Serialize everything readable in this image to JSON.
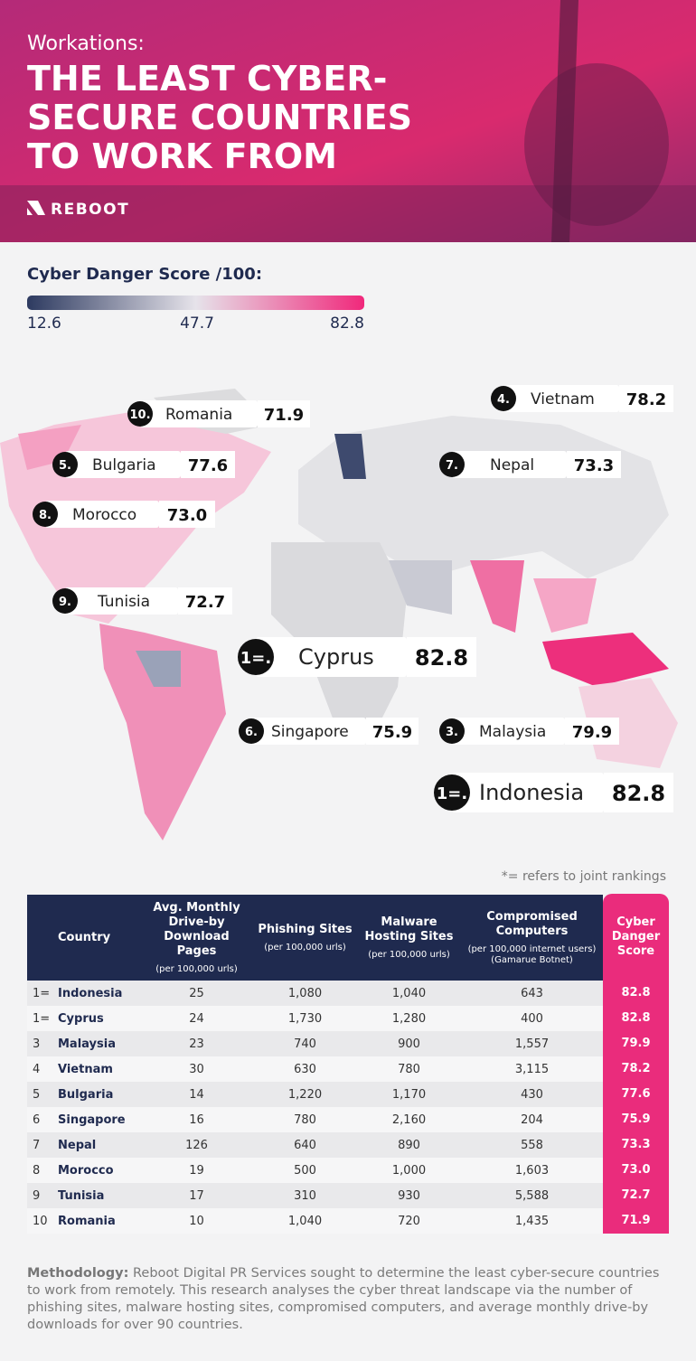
{
  "header": {
    "kicker": "Workations:",
    "title_lines": [
      "THE LEAST CYBER-",
      "SECURE COUNTRIES",
      "TO WORK FROM"
    ],
    "logo": "REBOOT"
  },
  "legend": {
    "title": "Cyber Danger Score /100:",
    "min": "12.6",
    "mid": "47.7",
    "max": "82.8"
  },
  "map_labels": [
    {
      "rank": "10.",
      "country": "Romania",
      "score": "71.9"
    },
    {
      "rank": "4.",
      "country": "Vietnam",
      "score": "78.2"
    },
    {
      "rank": "5.",
      "country": "Bulgaria",
      "score": "77.6"
    },
    {
      "rank": "7.",
      "country": "Nepal",
      "score": "73.3"
    },
    {
      "rank": "8.",
      "country": "Morocco",
      "score": "73.0"
    },
    {
      "rank": "9.",
      "country": "Tunisia",
      "score": "72.7"
    },
    {
      "rank": "1=.",
      "country": "Cyprus",
      "score": "82.8"
    },
    {
      "rank": "6.",
      "country": "Singapore",
      "score": "75.9"
    },
    {
      "rank": "3.",
      "country": "Malaysia",
      "score": "79.9"
    },
    {
      "rank": "1=.",
      "country": "Indonesia",
      "score": "82.8"
    }
  ],
  "footnote": "*= refers to joint rankings",
  "table": {
    "columns": [
      {
        "title": "Country"
      },
      {
        "title": "Avg. Monthly Drive-by Download Pages",
        "subtitle": "(per 100,000 urls)"
      },
      {
        "title": "Phishing Sites",
        "subtitle": "(per 100,000 urls)"
      },
      {
        "title": "Malware Hosting Sites",
        "subtitle": "(per 100,000 urls)"
      },
      {
        "title": "Compromised Computers",
        "subtitle": "(per 100,000 internet users) (Gamarue Botnet)"
      },
      {
        "title": "Cyber Danger Score"
      }
    ],
    "rows": [
      [
        "1=",
        "Indonesia",
        "25",
        "1,080",
        "1,040",
        "643",
        "82.8"
      ],
      [
        "1=",
        "Cyprus",
        "24",
        "1,730",
        "1,280",
        "400",
        "82.8"
      ],
      [
        "3",
        "Malaysia",
        "23",
        "740",
        "900",
        "1,557",
        "79.9"
      ],
      [
        "4",
        "Vietnam",
        "30",
        "630",
        "780",
        "3,115",
        "78.2"
      ],
      [
        "5",
        "Bulgaria",
        "14",
        "1,220",
        "1,170",
        "430",
        "77.6"
      ],
      [
        "6",
        "Singapore",
        "16",
        "780",
        "2,160",
        "204",
        "75.9"
      ],
      [
        "7",
        "Nepal",
        "126",
        "640",
        "890",
        "558",
        "73.3"
      ],
      [
        "8",
        "Morocco",
        "19",
        "500",
        "1,000",
        "1,603",
        "73.0"
      ],
      [
        "9",
        "Tunisia",
        "17",
        "310",
        "930",
        "5,588",
        "72.7"
      ],
      [
        "10",
        "Romania",
        "10",
        "1,040",
        "720",
        "1,435",
        "71.9"
      ]
    ]
  },
  "methodology": {
    "label": "Methodology:",
    "text": " Reboot Digital PR Services sought to determine the least cyber-secure countries to work from remotely. This research analyses the cyber threat landscape via the number of phishing sites, malware hosting sites, compromised computers, and average monthly drive-by downloads for over 90 countries."
  }
}
